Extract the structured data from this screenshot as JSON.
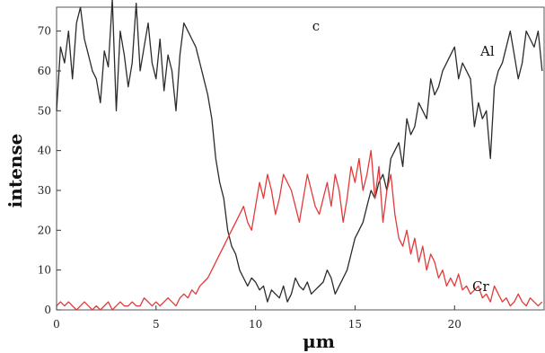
{
  "chart_data": {
    "type": "line",
    "title": "",
    "annotation": "c",
    "xlabel": "μm",
    "ylabel": "intense",
    "xlim": [
      0,
      24.5
    ],
    "ylim": [
      0,
      76
    ],
    "xticks": [
      0,
      5,
      10,
      15,
      20
    ],
    "yticks": [
      0,
      10,
      20,
      30,
      40,
      50,
      60,
      70
    ],
    "grid": false,
    "legend": "none",
    "series": [
      {
        "name": "Al",
        "color": "#2b2b2b",
        "x": [
          0,
          0.2,
          0.4,
          0.6,
          0.8,
          1.0,
          1.2,
          1.4,
          1.6,
          1.8,
          2.0,
          2.2,
          2.4,
          2.6,
          2.8,
          3.0,
          3.2,
          3.4,
          3.6,
          3.8,
          4.0,
          4.2,
          4.4,
          4.6,
          4.8,
          5.0,
          5.2,
          5.4,
          5.6,
          5.8,
          6.0,
          6.2,
          6.4,
          6.6,
          6.8,
          7.0,
          7.2,
          7.4,
          7.6,
          7.8,
          8.0,
          8.2,
          8.4,
          8.6,
          8.8,
          9.0,
          9.2,
          9.4,
          9.6,
          9.8,
          10.0,
          10.2,
          10.4,
          10.6,
          10.8,
          11.0,
          11.2,
          11.4,
          11.6,
          11.8,
          12.0,
          12.2,
          12.4,
          12.6,
          12.8,
          13.0,
          13.2,
          13.4,
          13.6,
          13.8,
          14.0,
          14.2,
          14.4,
          14.6,
          14.8,
          15.0,
          15.2,
          15.4,
          15.6,
          15.8,
          16.0,
          16.2,
          16.4,
          16.6,
          16.8,
          17.0,
          17.2,
          17.4,
          17.6,
          17.8,
          18.0,
          18.2,
          18.4,
          18.6,
          18.8,
          19.0,
          19.2,
          19.4,
          19.6,
          19.8,
          20.0,
          20.2,
          20.4,
          20.6,
          20.8,
          21.0,
          21.2,
          21.4,
          21.6,
          21.8,
          22.0,
          22.2,
          22.4,
          22.6,
          22.8,
          23.0,
          23.2,
          23.4,
          23.6,
          23.8,
          24.0,
          24.2,
          24.4
        ],
        "y": [
          50,
          66,
          62,
          70,
          58,
          72,
          76,
          68,
          64,
          60,
          58,
          52,
          65,
          61,
          78,
          50,
          70,
          64,
          56,
          62,
          77,
          60,
          66,
          72,
          62,
          58,
          68,
          55,
          64,
          60,
          50,
          64,
          72,
          70,
          68,
          66,
          62,
          58,
          54,
          48,
          38,
          32,
          28,
          20,
          16,
          14,
          10,
          8,
          6,
          8,
          7,
          5,
          6,
          2,
          5,
          4,
          3,
          6,
          2,
          4,
          8,
          6,
          5,
          7,
          4,
          5,
          6,
          7,
          10,
          8,
          4,
          6,
          8,
          10,
          14,
          18,
          20,
          22,
          26,
          30,
          28,
          32,
          34,
          30,
          38,
          40,
          42,
          36,
          48,
          44,
          46,
          52,
          50,
          48,
          58,
          54,
          56,
          60,
          62,
          64,
          66,
          58,
          62,
          60,
          58,
          46,
          52,
          48,
          50,
          38,
          56,
          60,
          62,
          66,
          70,
          64,
          58,
          62,
          70,
          68,
          66,
          70,
          60
        ]
      },
      {
        "name": "Cr",
        "color": "#e23a3a",
        "x": [
          0,
          0.2,
          0.4,
          0.6,
          0.8,
          1.0,
          1.2,
          1.4,
          1.6,
          1.8,
          2.0,
          2.2,
          2.4,
          2.6,
          2.8,
          3.0,
          3.2,
          3.4,
          3.6,
          3.8,
          4.0,
          4.2,
          4.4,
          4.6,
          4.8,
          5.0,
          5.2,
          5.4,
          5.6,
          5.8,
          6.0,
          6.2,
          6.4,
          6.6,
          6.8,
          7.0,
          7.2,
          7.4,
          7.6,
          7.8,
          8.0,
          8.2,
          8.4,
          8.6,
          8.8,
          9.0,
          9.2,
          9.4,
          9.6,
          9.8,
          10.0,
          10.2,
          10.4,
          10.6,
          10.8,
          11.0,
          11.2,
          11.4,
          11.6,
          11.8,
          12.0,
          12.2,
          12.4,
          12.6,
          12.8,
          13.0,
          13.2,
          13.4,
          13.6,
          13.8,
          14.0,
          14.2,
          14.4,
          14.6,
          14.8,
          15.0,
          15.2,
          15.4,
          15.6,
          15.8,
          16.0,
          16.2,
          16.4,
          16.6,
          16.8,
          17.0,
          17.2,
          17.4,
          17.6,
          17.8,
          18.0,
          18.2,
          18.4,
          18.6,
          18.8,
          19.0,
          19.2,
          19.4,
          19.6,
          19.8,
          20.0,
          20.2,
          20.4,
          20.6,
          20.8,
          21.0,
          21.2,
          21.4,
          21.6,
          21.8,
          22.0,
          22.2,
          22.4,
          22.6,
          22.8,
          23.0,
          23.2,
          23.4,
          23.6,
          23.8,
          24.0,
          24.2,
          24.4
        ],
        "y": [
          1,
          2,
          1,
          2,
          1,
          0,
          1,
          2,
          1,
          0,
          1,
          0,
          1,
          2,
          0,
          1,
          2,
          1,
          1,
          2,
          1,
          1,
          3,
          2,
          1,
          2,
          1,
          2,
          3,
          2,
          1,
          3,
          4,
          3,
          5,
          4,
          6,
          7,
          8,
          10,
          12,
          14,
          16,
          18,
          20,
          22,
          24,
          26,
          22,
          20,
          26,
          32,
          28,
          34,
          30,
          24,
          28,
          34,
          32,
          30,
          26,
          22,
          28,
          34,
          30,
          26,
          24,
          28,
          32,
          26,
          34,
          30,
          22,
          28,
          36,
          32,
          38,
          30,
          34,
          40,
          28,
          36,
          22,
          30,
          34,
          24,
          18,
          16,
          20,
          14,
          18,
          12,
          16,
          10,
          14,
          12,
          8,
          10,
          6,
          8,
          6,
          9,
          5,
          6,
          4,
          5,
          6,
          3,
          4,
          2,
          6,
          4,
          2,
          3,
          1,
          2,
          4,
          2,
          1,
          3,
          2,
          1,
          2
        ]
      }
    ]
  }
}
